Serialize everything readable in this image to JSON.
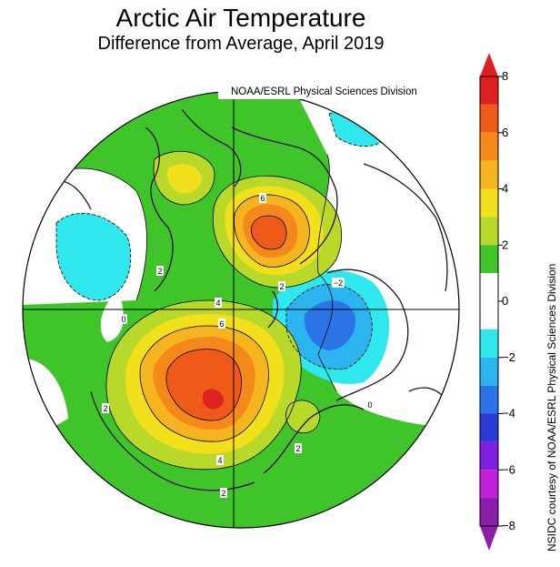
{
  "title": "Arctic Air Temperature",
  "subtitle": "Difference from Average, April 2019",
  "source": "NOAA/ESRL Physical Sciences Division",
  "credit": "NSIDC courtesy of NOAA/ESRL Physical Sciences Division",
  "colorbar": {
    "min": -8,
    "max": 8,
    "tick_labels": [
      "8",
      "6",
      "4",
      "2",
      "0",
      "−2",
      "−4",
      "−6",
      "−8"
    ],
    "bins": [
      {
        "from": 7,
        "to": 8,
        "color": "#e02020"
      },
      {
        "from": 6,
        "to": 7,
        "color": "#f05a18"
      },
      {
        "from": 5,
        "to": 6,
        "color": "#f4881a"
      },
      {
        "from": 4,
        "to": 5,
        "color": "#f6b51e"
      },
      {
        "from": 3,
        "to": 4,
        "color": "#f2e01c"
      },
      {
        "from": 2,
        "to": 3,
        "color": "#b8d92a"
      },
      {
        "from": 1,
        "to": 2,
        "color": "#3fc42a"
      },
      {
        "from": -1,
        "to": 1,
        "color": "#ffffff"
      },
      {
        "from": -2,
        "to": -1,
        "color": "#2ee8ee"
      },
      {
        "from": -3,
        "to": -2,
        "color": "#2cb4ee"
      },
      {
        "from": -4,
        "to": -3,
        "color": "#2a74e8"
      },
      {
        "from": -5,
        "to": -4,
        "color": "#2a3ad4"
      },
      {
        "from": -6,
        "to": -5,
        "color": "#7d1ee0"
      },
      {
        "from": -7,
        "to": -6,
        "color": "#c020d8"
      },
      {
        "from": -8,
        "to": -7,
        "color": "#8a1ea8"
      }
    ]
  },
  "contour_labels": [
    "6",
    "2",
    "4",
    "6",
    "0",
    "2",
    "2",
    "4",
    "2",
    "0",
    "2",
    "−2"
  ]
}
